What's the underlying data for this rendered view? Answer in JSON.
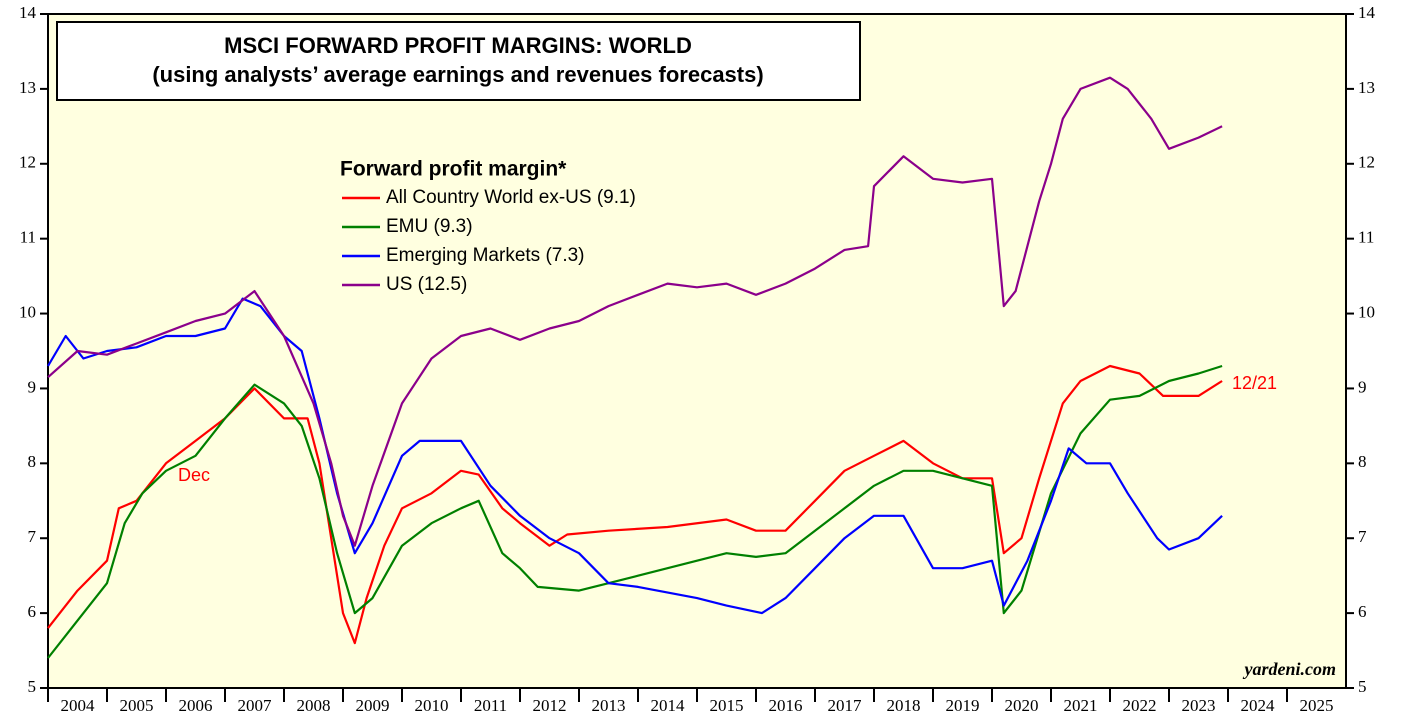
{
  "chart_data": {
    "type": "line",
    "title": "MSCI FORWARD PROFIT MARGINS: WORLD",
    "subtitle": "(using analysts’ average earnings and revenues forecasts)",
    "legend_title": "Forward profit margin*",
    "annotations": [
      "Dec",
      "12/21"
    ],
    "source": "yardeni.com",
    "xlim": [
      2004,
      2026
    ],
    "xticks": [
      2004,
      2005,
      2006,
      2007,
      2008,
      2009,
      2010,
      2011,
      2012,
      2013,
      2014,
      2015,
      2016,
      2017,
      2018,
      2019,
      2020,
      2021,
      2022,
      2023,
      2024,
      2025
    ],
    "ylim": [
      5,
      14
    ],
    "yticks": [
      5,
      6,
      7,
      8,
      9,
      10,
      11,
      12,
      13,
      14
    ],
    "series": [
      {
        "name": "All Country World ex-US (9.1)",
        "color": "#ff0000",
        "x": [
          2004,
          2004.5,
          2005,
          2005.2,
          2005.5,
          2006,
          2006.5,
          2007,
          2007.5,
          2008,
          2008.4,
          2008.6,
          2008.8,
          2009,
          2009.2,
          2009.4,
          2009.7,
          2010,
          2010.5,
          2011,
          2011.3,
          2011.7,
          2012,
          2012.5,
          2012.8,
          2013.5,
          2014.5,
          2015.5,
          2016,
          2016.5,
          2017,
          2017.5,
          2018,
          2018.5,
          2019,
          2019.5,
          2020,
          2020.2,
          2020.5,
          2020.8,
          2021.2,
          2021.5,
          2022,
          2022.5,
          2022.9,
          2023.5,
          2023.9
        ],
        "values": [
          5.8,
          6.3,
          6.7,
          7.4,
          7.5,
          8.0,
          8.3,
          8.6,
          9.0,
          8.6,
          8.6,
          8.0,
          7.0,
          6.0,
          5.6,
          6.2,
          6.9,
          7.4,
          7.6,
          7.9,
          7.85,
          7.4,
          7.2,
          6.9,
          7.05,
          7.1,
          7.15,
          7.25,
          7.1,
          7.1,
          7.5,
          7.9,
          8.1,
          8.3,
          8.0,
          7.8,
          7.8,
          6.8,
          7.0,
          7.8,
          8.8,
          9.1,
          9.3,
          9.2,
          8.9,
          8.9,
          9.1
        ]
      },
      {
        "name": "EMU (9.3)",
        "color": "#008000",
        "x": [
          2004,
          2004.5,
          2005,
          2005.3,
          2005.6,
          2006,
          2006.5,
          2007,
          2007.5,
          2008,
          2008.3,
          2008.6,
          2008.9,
          2009.2,
          2009.5,
          2010,
          2010.5,
          2011,
          2011.3,
          2011.7,
          2012,
          2012.3,
          2013,
          2013.5,
          2014,
          2014.5,
          2015.5,
          2016,
          2016.5,
          2017,
          2017.5,
          2018,
          2018.5,
          2019,
          2019.5,
          2020,
          2020.2,
          2020.5,
          2021,
          2021.5,
          2022,
          2022.5,
          2023,
          2023.5,
          2023.9
        ],
        "values": [
          5.4,
          5.9,
          6.4,
          7.2,
          7.6,
          7.9,
          8.1,
          8.6,
          9.05,
          8.8,
          8.5,
          7.8,
          6.8,
          6.0,
          6.2,
          6.9,
          7.2,
          7.4,
          7.5,
          6.8,
          6.6,
          6.35,
          6.3,
          6.4,
          6.5,
          6.6,
          6.8,
          6.75,
          6.8,
          7.1,
          7.4,
          7.7,
          7.9,
          7.9,
          7.8,
          7.7,
          6.0,
          6.3,
          7.6,
          8.4,
          8.85,
          8.9,
          9.1,
          9.2,
          9.3
        ]
      },
      {
        "name": "Emerging Markets (7.3)",
        "color": "#0000ff",
        "x": [
          2004,
          2004.3,
          2004.6,
          2005,
          2005.5,
          2006,
          2006.5,
          2007,
          2007.3,
          2007.6,
          2008,
          2008.3,
          2008.6,
          2008.9,
          2009.2,
          2009.5,
          2010,
          2010.3,
          2011,
          2011.5,
          2012,
          2012.5,
          2013,
          2013.5,
          2014,
          2015,
          2015.5,
          2016.1,
          2016.5,
          2017,
          2017.5,
          2018,
          2018.5,
          2019,
          2019.5,
          2020,
          2020.2,
          2020.6,
          2021,
          2021.3,
          2021.6,
          2022,
          2022.3,
          2022.8,
          2023,
          2023.5,
          2023.9
        ],
        "values": [
          9.3,
          9.7,
          9.4,
          9.5,
          9.55,
          9.7,
          9.7,
          9.8,
          10.2,
          10.1,
          9.7,
          9.5,
          8.6,
          7.6,
          6.8,
          7.2,
          8.1,
          8.3,
          8.3,
          7.7,
          7.3,
          7.0,
          6.8,
          6.4,
          6.35,
          6.2,
          6.1,
          6.0,
          6.2,
          6.6,
          7.0,
          7.3,
          7.3,
          6.6,
          6.6,
          6.7,
          6.1,
          6.7,
          7.5,
          8.2,
          8.0,
          8.0,
          7.6,
          7.0,
          6.85,
          7.0,
          7.3
        ]
      },
      {
        "name": "US (12.5)",
        "color": "#8b008b",
        "x": [
          2004,
          2004.5,
          2005,
          2005.5,
          2006,
          2006.5,
          2007,
          2007.5,
          2008,
          2008.5,
          2008.8,
          2009,
          2009.2,
          2009.5,
          2010,
          2010.5,
          2011,
          2011.5,
          2012,
          2012.5,
          2013,
          2013.5,
          2014,
          2014.5,
          2015,
          2015.5,
          2016,
          2016.5,
          2017,
          2017.5,
          2017.9,
          2018,
          2018.5,
          2019,
          2019.5,
          2020,
          2020.2,
          2020.4,
          2020.8,
          2021,
          2021.2,
          2021.5,
          2022,
          2022.3,
          2022.7,
          2023,
          2023.5,
          2023.9
        ],
        "values": [
          9.15,
          9.5,
          9.45,
          9.6,
          9.75,
          9.9,
          10.0,
          10.3,
          9.7,
          8.8,
          8.0,
          7.3,
          6.9,
          7.7,
          8.8,
          9.4,
          9.7,
          9.8,
          9.65,
          9.8,
          9.9,
          10.1,
          10.25,
          10.4,
          10.35,
          10.4,
          10.25,
          10.4,
          10.6,
          10.85,
          10.9,
          11.7,
          12.1,
          11.8,
          11.75,
          11.8,
          10.1,
          10.3,
          11.5,
          12.0,
          12.6,
          13.0,
          13.15,
          13.0,
          12.6,
          12.2,
          12.35,
          12.5
        ]
      }
    ]
  }
}
